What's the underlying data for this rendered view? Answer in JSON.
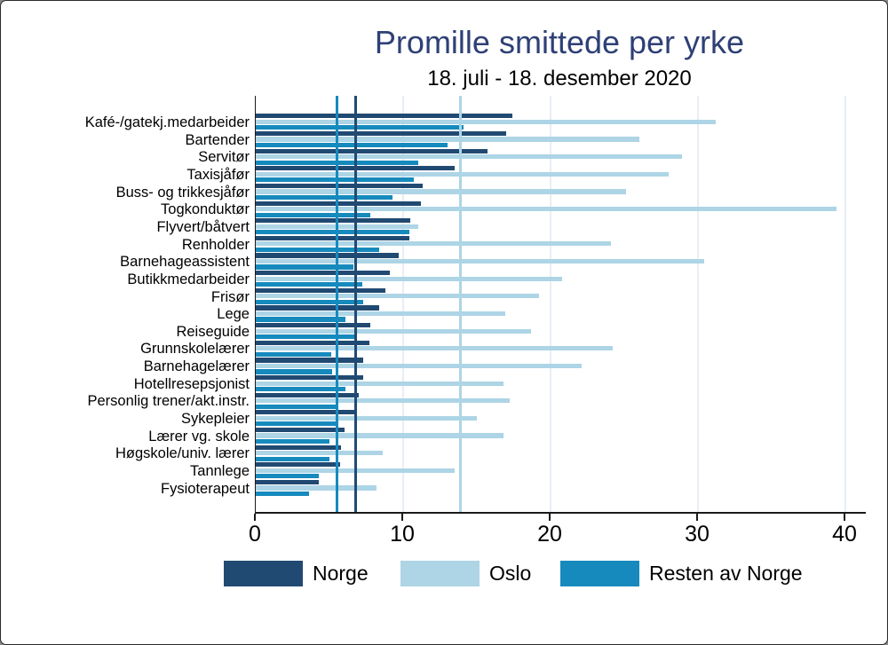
{
  "title": "Promille smittede per yrke",
  "subtitle": "18. juli - 18. desember 2020",
  "colors": {
    "norge": "#214a72",
    "oslo": "#add5e6",
    "resten": "#168abd",
    "grid": "#e7eef4",
    "axis": "#1a1a1a",
    "title_text": "#2e4075"
  },
  "chart_data": {
    "type": "bar",
    "orientation": "horizontal",
    "title": "Promille smittede per yrke",
    "subtitle": "18. juli - 18. desember 2020",
    "xlabel": "",
    "ylabel": "",
    "xlim": [
      0,
      41.3
    ],
    "x_ticks": [
      0,
      10,
      20,
      30,
      40
    ],
    "grid": true,
    "legend_position": "bottom",
    "units": "promille",
    "categories": [
      "Kafé-/gatekj.medarbeider",
      "Bartender",
      "Servitør",
      "Taxisjåfør",
      "Buss- og trikkesjåfør",
      "Togkonduktør",
      "Flyvert/båtvert",
      "Renholder",
      "Barnehageassistent",
      "Butikkmedarbeider",
      "Frisør",
      "Lege",
      "Reiseguide",
      "Grunnskolelærer",
      "Barnehagelærer",
      "Hotellresepsjonist",
      "Personlig trener/akt.instr.",
      "Sykepleier",
      "Lærer vg. skole",
      "Høgskole/univ. lærer",
      "Tannlege",
      "Fysioterapeut"
    ],
    "series": [
      {
        "name": "Norge",
        "color_key": "norge",
        "values": [
          17.4,
          17.0,
          15.7,
          13.5,
          11.3,
          11.2,
          10.5,
          10.4,
          9.7,
          9.1,
          8.8,
          8.4,
          7.8,
          7.7,
          7.3,
          7.3,
          7.0,
          6.8,
          6.0,
          5.8,
          5.7,
          4.3
        ]
      },
      {
        "name": "Oslo",
        "color_key": "oslo",
        "values": [
          31.2,
          26.0,
          28.9,
          28.0,
          25.1,
          39.4,
          11.0,
          24.1,
          30.4,
          20.8,
          19.2,
          16.9,
          18.7,
          24.2,
          22.1,
          16.8,
          17.2,
          15.0,
          16.8,
          8.6,
          13.5,
          8.2
        ]
      },
      {
        "name": "Resten av Norge",
        "color_key": "resten",
        "values": [
          14.1,
          13.0,
          11.0,
          10.7,
          9.3,
          7.8,
          10.4,
          8.4,
          6.6,
          7.2,
          7.3,
          6.1,
          6.7,
          5.1,
          5.2,
          6.1,
          5.6,
          5.4,
          5.0,
          5.0,
          4.3,
          3.6
        ]
      }
    ],
    "reference_lines": [
      {
        "series": "Norge",
        "value": 6.8,
        "color_key": "norge"
      },
      {
        "series": "Oslo",
        "value": 13.9,
        "color_key": "oslo"
      },
      {
        "series": "Resten av Norge",
        "value": 5.5,
        "color_key": "resten"
      }
    ]
  },
  "legend": {
    "items": [
      {
        "label": "Norge",
        "color_key": "norge"
      },
      {
        "label": "Oslo",
        "color_key": "oslo"
      },
      {
        "label": "Resten av Norge",
        "color_key": "resten"
      }
    ]
  }
}
